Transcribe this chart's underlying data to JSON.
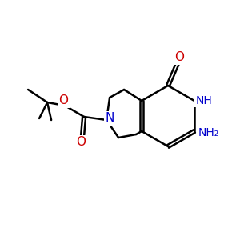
{
  "bg_color": "#ffffff",
  "atom_colors": {
    "C": "#000000",
    "N": "#0000cc",
    "O": "#cc0000",
    "H": "#0000cc"
  },
  "bond_color": "#000000",
  "bond_width": 1.8,
  "figsize": [
    3.0,
    3.0
  ],
  "dpi": 100
}
